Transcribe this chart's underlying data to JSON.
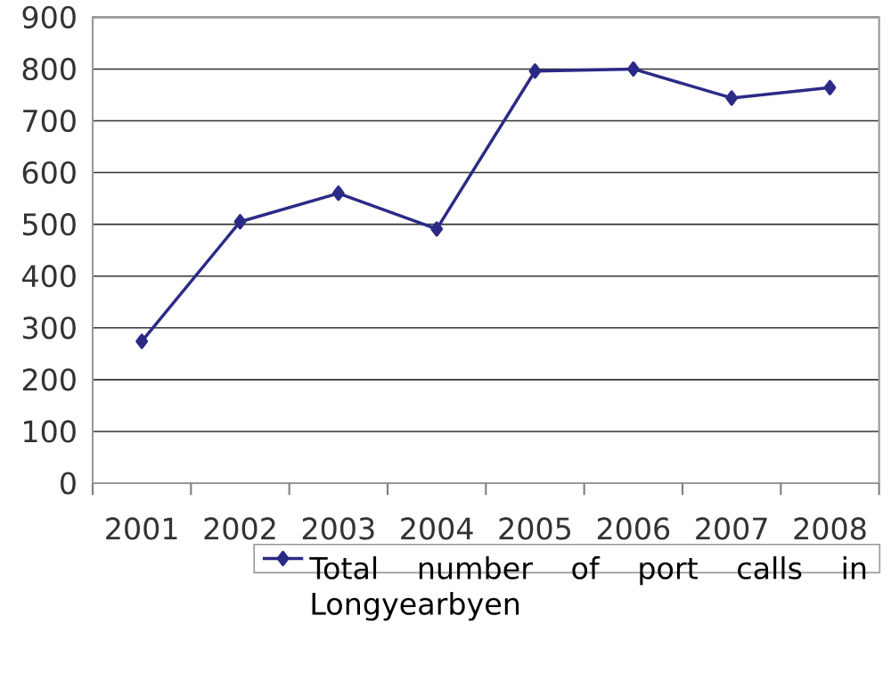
{
  "chart_data": {
    "type": "line",
    "categories": [
      "2001",
      "2002",
      "2003",
      "2004",
      "2005",
      "2006",
      "2007",
      "2008"
    ],
    "series": [
      {
        "name": "Total number of port calls in Longyearbyen",
        "color": "#2b2a86",
        "values": [
          274,
          505,
          560,
          491,
          796,
          800,
          744,
          764
        ]
      }
    ],
    "ylim": [
      0,
      900
    ],
    "yticks": [
      0,
      100,
      200,
      300,
      400,
      500,
      600,
      700,
      800,
      900
    ],
    "grid": "y",
    "legend": "bottom",
    "marker": "diamond",
    "line_style": "solid"
  }
}
